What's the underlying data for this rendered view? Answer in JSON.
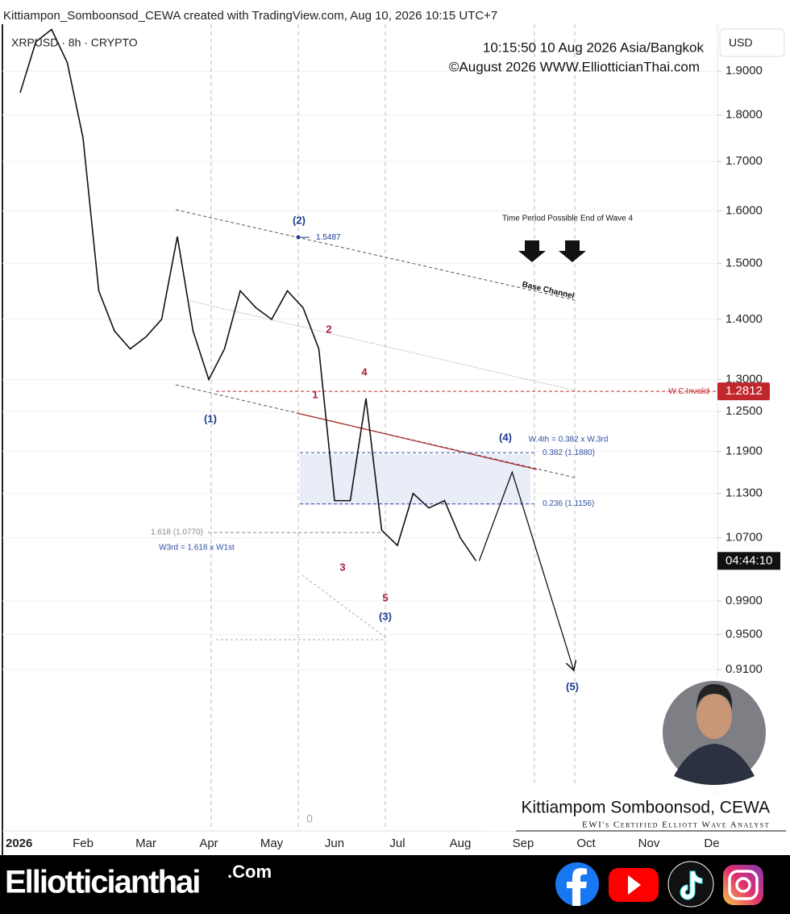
{
  "header": "Kittiampon_Sombo​onsod_CEWA created with TradingView.com, Aug 10, 2026 10:15 UTC+7",
  "chart_data": {
    "type": "line",
    "symbol": "XRPUSD · 8h · CRYPTO",
    "timestamp": "10:15:50 10 Aug 2026 Asia/Bangkok",
    "copyright": "©August 2026 WWW.ElliotticianThai.com",
    "currency": "USD",
    "log_scale": true,
    "grid": true,
    "ylim": [
      0.746,
      2.013
    ],
    "yticks": [
      {
        "value": 1.9,
        "label": "1.9000"
      },
      {
        "value": 1.8,
        "label": "1.8000"
      },
      {
        "value": 1.7,
        "label": "1.7000"
      },
      {
        "value": 1.6,
        "label": "1.6000"
      },
      {
        "value": 1.5,
        "label": "1.5000"
      },
      {
        "value": 1.4,
        "label": "1.4000"
      },
      {
        "value": 1.3,
        "label": "1.3000"
      },
      {
        "value": 1.25,
        "label": "1.2500"
      },
      {
        "value": 1.19,
        "label": "1.1900"
      },
      {
        "value": 1.13,
        "label": "1.1300"
      },
      {
        "value": 1.07,
        "label": "1.0700"
      },
      {
        "value": 0.99,
        "label": "0.9900"
      },
      {
        "value": 0.95,
        "label": "0.9500"
      },
      {
        "value": 0.91,
        "label": "0.9100"
      }
    ],
    "categories": [
      "2026",
      null,
      null,
      null,
      "Feb",
      null,
      null,
      null,
      "Mar",
      null,
      null,
      null,
      "Apr",
      null,
      null,
      null,
      "May",
      null,
      null,
      null,
      "Jun",
      null,
      null,
      null,
      "Jul",
      null,
      null,
      null,
      "Aug",
      null,
      null,
      null,
      "Sep",
      null,
      null,
      null,
      "Oct",
      null,
      null,
      null,
      "Nov",
      null,
      null,
      null,
      "De",
      null,
      null,
      null
    ],
    "series": [
      {
        "color": "#111111",
        "values": [
          1.85,
          1.97,
          2.0,
          1.92,
          1.75,
          1.45,
          1.38,
          1.35,
          1.37,
          1.4,
          1.55,
          1.38,
          1.3,
          1.35,
          1.45,
          1.42,
          1.4,
          1.45,
          1.42,
          1.35,
          1.12,
          1.12,
          1.27,
          1.08,
          1.06,
          1.13,
          1.11,
          1.12,
          1.07,
          1.04,
          null,
          null,
          null,
          null,
          null,
          null,
          null,
          null,
          null,
          null,
          null,
          null,
          null,
          null,
          null,
          null,
          null,
          null
        ]
      }
    ],
    "projection": {
      "color": "#111111",
      "x": [
        29.2,
        31.3,
        35.2
      ],
      "values": [
        1.04,
        1.16,
        0.91
      ]
    },
    "wave2_high": 1.5487,
    "levels": [
      {
        "value": 1.2812,
        "label": "W.C.Invalid",
        "color": "#c0272d",
        "price_box": true
      },
      {
        "value": 1.188,
        "label": "0.382 (1.1880)",
        "color": "#2e4fa0",
        "price_box": false
      },
      {
        "value": 1.1156,
        "label": "0.236 (1.1156)",
        "color": "#2e4fa0",
        "price_box": false
      },
      {
        "value": 1.077,
        "label": "1.618 (1.0770)",
        "color": "#888888",
        "price_box": false
      }
    ],
    "countdown": "04:44:10",
    "wave_labels": [
      {
        "text": "(1)",
        "color": "#1a3a8f"
      },
      {
        "text": "(2)",
        "color": "#1a3a8f"
      },
      {
        "text": "(3)",
        "color": "#1a3a8f"
      },
      {
        "text": "(4)",
        "color": "#1a3a8f"
      },
      {
        "text": "(5)",
        "color": "#1a3a8f"
      },
      {
        "text": "1",
        "color": "#a5213a"
      },
      {
        "text": "2",
        "color": "#a5213a"
      },
      {
        "text": "3",
        "color": "#a5213a"
      },
      {
        "text": "4",
        "color": "#a5213a"
      },
      {
        "text": "5",
        "color": "#a5213a"
      }
    ],
    "annotations": [
      "W.4th = 0.382 x W.3rd",
      "W3rd = 1.618 x W1st",
      "Time Period Possible End of Wave 4",
      "Base Channel"
    ],
    "pane_scale": 0
  },
  "author": {
    "name": "Kittiampom Somboonsod, CEWA",
    "title": "EWI's Certified Elliott Wave Analyst"
  },
  "footer": {
    "brand": "Elliotticianthai",
    "suffix": ".Com"
  }
}
